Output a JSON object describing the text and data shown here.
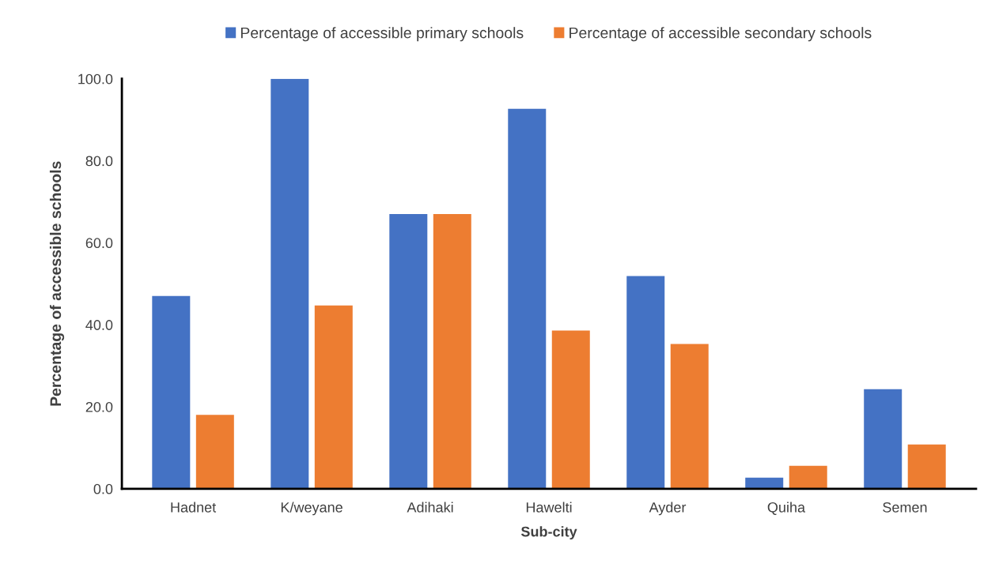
{
  "chart_data": {
    "type": "bar",
    "xlabel": "Sub-city",
    "ylabel": "Percentage of accessible schools",
    "categories": [
      "Hadnet",
      "K/weyane",
      "Adihaki",
      "Hawelti",
      "Ayder",
      "Quiha",
      "Semen"
    ],
    "series": [
      {
        "name": "Percentage of accessible primary schools",
        "color": "#4472c4",
        "values": [
          47.0,
          100.0,
          67.0,
          92.7,
          51.9,
          2.7,
          24.3
        ]
      },
      {
        "name": "Percentage of accessible secondary schools",
        "color": "#ed7d31",
        "values": [
          18.0,
          44.7,
          67.0,
          38.6,
          35.3,
          5.6,
          10.8
        ]
      }
    ],
    "ylim": [
      0,
      100
    ],
    "yticks": [
      {
        "value": 0,
        "label": "0.0"
      },
      {
        "value": 20,
        "label": "20.0"
      },
      {
        "value": 40,
        "label": "40.0"
      },
      {
        "value": 60,
        "label": "60.0"
      },
      {
        "value": 80,
        "label": "80.0"
      },
      {
        "value": 100,
        "label": "100.0"
      }
    ],
    "grid": false,
    "legend": "top"
  }
}
